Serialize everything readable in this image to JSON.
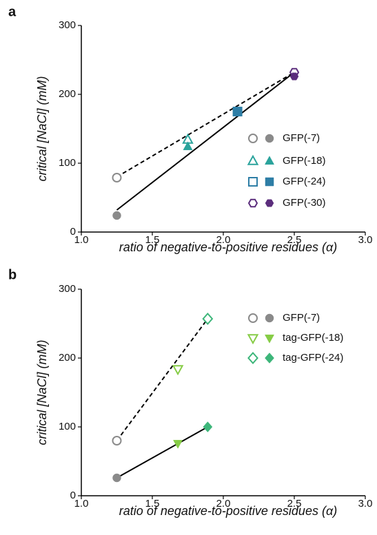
{
  "chart_data": [
    {
      "type": "scatter",
      "panel": "a",
      "x_label": "ratio of negative-to-positive residues (α)",
      "y_label": "critical [NaCl] (mM)",
      "xlim": [
        1.0,
        3.0
      ],
      "ylim": [
        0,
        300
      ],
      "xticks": [
        {
          "value": 1.0,
          "label": "1.0"
        },
        {
          "value": 1.5,
          "label": "1.5"
        },
        {
          "value": 2.0,
          "label": "2.0"
        },
        {
          "value": 2.5,
          "label": "2.5"
        },
        {
          "value": 3.0,
          "label": "3.0"
        }
      ],
      "yticks": [
        0,
        100,
        200,
        300
      ],
      "series": [
        {
          "name": "GFP(-7)",
          "color": "#8a8a8a",
          "marker": "circle",
          "x": [
            1.25,
            1.25
          ],
          "values": [
            79,
            24
          ],
          "filled": [
            false,
            true
          ]
        },
        {
          "name": "GFP(-18)",
          "color": "#2aa39c",
          "marker": "triangle-up",
          "x": [
            1.75,
            1.75
          ],
          "values": [
            134,
            124
          ],
          "filled": [
            false,
            true
          ]
        },
        {
          "name": "GFP(-24)",
          "color": "#2e7ea6",
          "marker": "square",
          "x": [
            2.1,
            2.1
          ],
          "values": [
            175,
            175
          ],
          "filled": [
            false,
            true
          ]
        },
        {
          "name": "GFP(-30)",
          "color": "#5b2d7c",
          "marker": "hexagon",
          "x": [
            2.5,
            2.5
          ],
          "values": [
            232,
            226
          ],
          "filled": [
            false,
            true
          ]
        }
      ],
      "fits": [
        {
          "style": "dashed",
          "x": [
            1.25,
            2.5
          ],
          "values": [
            80,
            232
          ]
        },
        {
          "style": "solid",
          "x": [
            1.25,
            2.5
          ],
          "values": [
            32,
            232
          ]
        }
      ]
    },
    {
      "type": "scatter",
      "panel": "b",
      "x_label": "ratio of negative-to-positive residues (α)",
      "y_label": "critical [NaCl] (mM)",
      "xlim": [
        1.0,
        3.0
      ],
      "ylim": [
        0,
        300
      ],
      "xticks": [
        {
          "value": 1.0,
          "label": "1.0"
        },
        {
          "value": 1.5,
          "label": "1.5"
        },
        {
          "value": 2.0,
          "label": "2.0"
        },
        {
          "value": 2.5,
          "label": "2.5"
        },
        {
          "value": 3.0,
          "label": "3.0"
        }
      ],
      "yticks": [
        0,
        100,
        200,
        300
      ],
      "series": [
        {
          "name": "GFP(-7)",
          "color": "#8a8a8a",
          "marker": "circle",
          "x": [
            1.25,
            1.25
          ],
          "values": [
            80,
            26
          ],
          "filled": [
            false,
            true
          ]
        },
        {
          "name": "tag-GFP(-18)",
          "color": "#86cc46",
          "marker": "triangle-down",
          "x": [
            1.68,
            1.68
          ],
          "values": [
            184,
            76
          ],
          "filled": [
            false,
            true
          ]
        },
        {
          "name": "tag-GFP(-24)",
          "color": "#3db67a",
          "marker": "diamond",
          "x": [
            1.89,
            1.89
          ],
          "values": [
            257,
            100
          ],
          "filled": [
            false,
            true
          ]
        }
      ],
      "fits": [
        {
          "style": "dashed",
          "x": [
            1.25,
            1.89
          ],
          "values": [
            80,
            257
          ]
        },
        {
          "style": "solid",
          "x": [
            1.25,
            1.89
          ],
          "values": [
            26,
            100
          ]
        }
      ]
    }
  ]
}
